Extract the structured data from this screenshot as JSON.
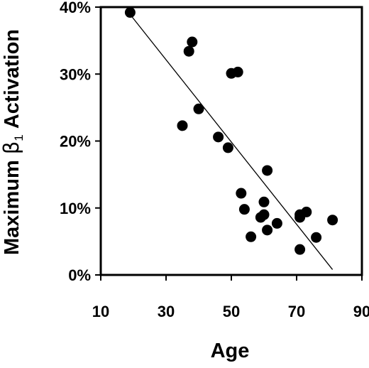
{
  "chart_data": {
    "type": "scatter",
    "title": "",
    "xlabel": "Age",
    "ylabel": {
      "prefix": "Maximum ",
      "symbol": "β",
      "subscript": "1",
      "suffix": " Activation"
    },
    "xlim": [
      10,
      90
    ],
    "ylim": [
      0,
      40
    ],
    "x_ticks": [
      10,
      30,
      50,
      70,
      90
    ],
    "x_tick_labels": [
      "10",
      "30",
      "50",
      "70",
      "90"
    ],
    "y_ticks": [
      0,
      10,
      20,
      30,
      40
    ],
    "y_tick_labels": [
      "0%",
      "10%",
      "20%",
      "30%",
      "40%"
    ],
    "grid": false,
    "legend": "none",
    "marker_color": "#000000",
    "points": [
      {
        "x": 19,
        "y": 39.2
      },
      {
        "x": 35,
        "y": 22.3
      },
      {
        "x": 37,
        "y": 33.4
      },
      {
        "x": 38,
        "y": 34.8
      },
      {
        "x": 40,
        "y": 24.8
      },
      {
        "x": 46,
        "y": 20.6
      },
      {
        "x": 49,
        "y": 19.0
      },
      {
        "x": 50,
        "y": 30.1
      },
      {
        "x": 52,
        "y": 30.3
      },
      {
        "x": 53,
        "y": 12.2
      },
      {
        "x": 54,
        "y": 9.8
      },
      {
        "x": 56,
        "y": 5.7
      },
      {
        "x": 59,
        "y": 8.6
      },
      {
        "x": 60,
        "y": 10.9
      },
      {
        "x": 60,
        "y": 9.0
      },
      {
        "x": 61,
        "y": 6.7
      },
      {
        "x": 61,
        "y": 15.6
      },
      {
        "x": 64,
        "y": 7.7
      },
      {
        "x": 71,
        "y": 8.6
      },
      {
        "x": 71,
        "y": 9.0
      },
      {
        "x": 71,
        "y": 3.8
      },
      {
        "x": 73,
        "y": 9.4
      },
      {
        "x": 76,
        "y": 5.6
      },
      {
        "x": 81,
        "y": 8.2
      }
    ],
    "trend_line": {
      "x": [
        19,
        81
      ],
      "y": [
        38.9,
        0.8
      ]
    }
  }
}
